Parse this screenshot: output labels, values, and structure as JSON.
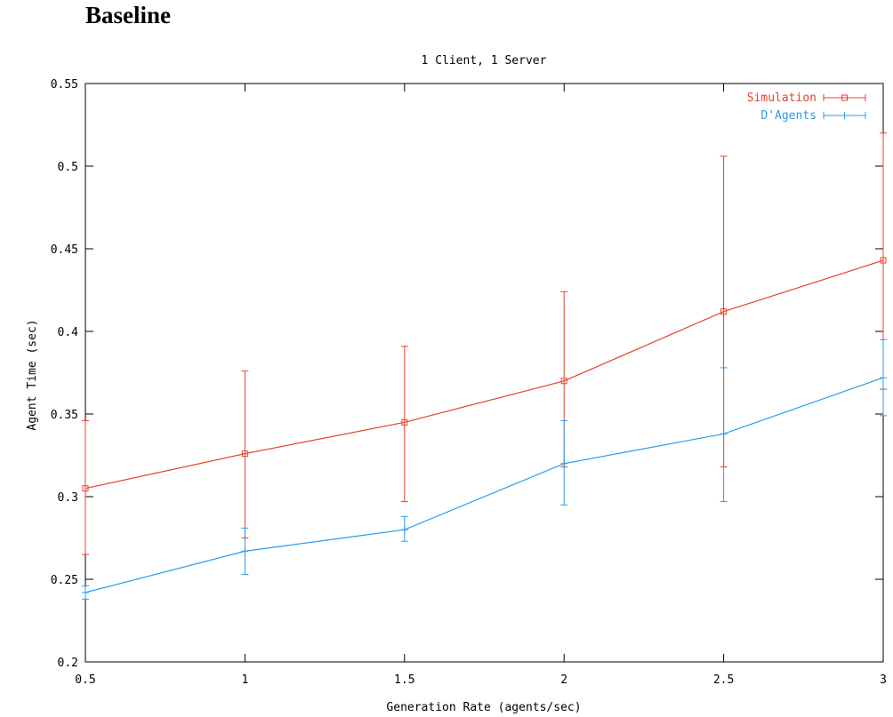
{
  "page": {
    "heading": "Baseline"
  },
  "chart_data": {
    "type": "line",
    "title": "1 Client, 1 Server",
    "xlabel": "Generation Rate (agents/sec)",
    "ylabel": "Agent Time (sec)",
    "xlim": [
      0.5,
      3
    ],
    "ylim": [
      0.2,
      0.55
    ],
    "xticks": [
      0.5,
      1,
      1.5,
      2,
      2.5,
      3
    ],
    "xtick_labels": [
      "0.5",
      "1",
      "1.5",
      "2",
      "2.5",
      "3"
    ],
    "yticks": [
      0.2,
      0.25,
      0.3,
      0.35,
      0.4,
      0.45,
      0.5,
      0.55
    ],
    "ytick_labels": [
      "0.2",
      "0.25",
      "0.3",
      "0.35",
      "0.4",
      "0.45",
      "0.5",
      "0.55"
    ],
    "grid": false,
    "legend_position": "top-right",
    "series": [
      {
        "name": "Simulation",
        "color": "#e8412c",
        "marker": "square",
        "x": [
          0.5,
          1,
          1.5,
          2,
          2.5,
          3
        ],
        "y": [
          0.305,
          0.326,
          0.345,
          0.37,
          0.412,
          0.443
        ],
        "y_low": [
          0.265,
          0.275,
          0.297,
          0.318,
          0.318,
          0.365
        ],
        "y_high": [
          0.346,
          0.376,
          0.391,
          0.424,
          0.506,
          0.52
        ]
      },
      {
        "name": "D'Agents",
        "color": "#2e9be8",
        "marker": "plus",
        "x": [
          0.5,
          1,
          1.5,
          2,
          2.5,
          3
        ],
        "y": [
          0.242,
          0.267,
          0.28,
          0.32,
          0.338,
          0.372
        ],
        "y_low": [
          0.238,
          0.253,
          0.273,
          0.295,
          0.297,
          0.349
        ],
        "y_high": [
          0.246,
          0.281,
          0.288,
          0.346,
          0.378,
          0.395
        ]
      }
    ]
  }
}
